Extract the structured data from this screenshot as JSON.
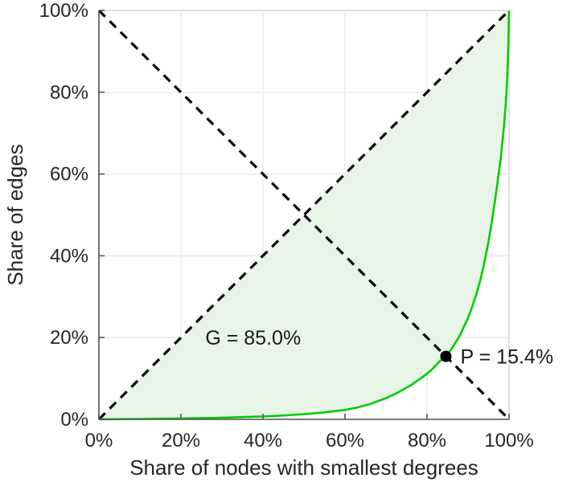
{
  "chart_data": {
    "type": "line",
    "title": "",
    "xlabel": "Share of nodes with smallest degrees",
    "ylabel": "Share of edges",
    "xlim": [
      0,
      100
    ],
    "ylim": [
      0,
      100
    ],
    "grid": true,
    "legend": "none",
    "x_tick_values": [
      0,
      20,
      40,
      60,
      80,
      100
    ],
    "x_tick_labels": [
      "0%",
      "20%",
      "40%",
      "60%",
      "80%",
      "100%"
    ],
    "y_tick_values": [
      0,
      20,
      40,
      60,
      80,
      100
    ],
    "y_tick_labels": [
      "0%",
      "20%",
      "40%",
      "60%",
      "80%",
      "100%"
    ],
    "series": [
      {
        "name": "lorenz-curve",
        "style": "solid",
        "color": "#00cc00",
        "width": 2.6,
        "points": [
          [
            0,
            0
          ],
          [
            5,
            0.05
          ],
          [
            10,
            0.1
          ],
          [
            15,
            0.15
          ],
          [
            20,
            0.2
          ],
          [
            25,
            0.3
          ],
          [
            30,
            0.4
          ],
          [
            35,
            0.55
          ],
          [
            40,
            0.7
          ],
          [
            45,
            0.95
          ],
          [
            50,
            1.25
          ],
          [
            55,
            1.7
          ],
          [
            60,
            2.3
          ],
          [
            63,
            2.9
          ],
          [
            66,
            3.7
          ],
          [
            70,
            5.2
          ],
          [
            73,
            6.6
          ],
          [
            76,
            8.3
          ],
          [
            79,
            10.4
          ],
          [
            81,
            12.0
          ],
          [
            83,
            14.1
          ],
          [
            84.6,
            15.4
          ],
          [
            86,
            17.2
          ],
          [
            88,
            20.5
          ],
          [
            90,
            24.8
          ],
          [
            91,
            27.5
          ],
          [
            92,
            30.5
          ],
          [
            93,
            34.0
          ],
          [
            94,
            38.5
          ],
          [
            95,
            43.5
          ],
          [
            96,
            49.5
          ],
          [
            97,
            56.5
          ],
          [
            98,
            64.0
          ],
          [
            98.8,
            72.0
          ],
          [
            99.3,
            78.5
          ],
          [
            99.6,
            84.5
          ],
          [
            99.8,
            90.0
          ],
          [
            100,
            100
          ]
        ]
      },
      {
        "name": "equality-line",
        "style": "dashed",
        "color": "#000000",
        "width": 3.2,
        "points": [
          [
            0,
            0
          ],
          [
            100,
            100
          ]
        ]
      },
      {
        "name": "anti-diagonal-line",
        "style": "dashed",
        "color": "#000000",
        "width": 3.2,
        "points": [
          [
            0,
            100
          ],
          [
            100,
            0
          ]
        ]
      }
    ],
    "area_fill": {
      "between": [
        "equality-line",
        "lorenz-curve"
      ],
      "color": "#e7f5e7"
    },
    "annotations": {
      "gini": {
        "text": "G = 85.0%",
        "x": 37.6,
        "y": 20
      },
      "p": {
        "text": "P = 15.4%",
        "x": 84.6,
        "y": 15.4,
        "marker": "filled-circle",
        "marker_color": "#000000",
        "marker_radius": 7
      }
    },
    "colors": {
      "grid": "#ececec",
      "axis": "#555555",
      "box": "#dcdcdc",
      "tick_text": "#262626",
      "background": "#ffffff"
    }
  }
}
